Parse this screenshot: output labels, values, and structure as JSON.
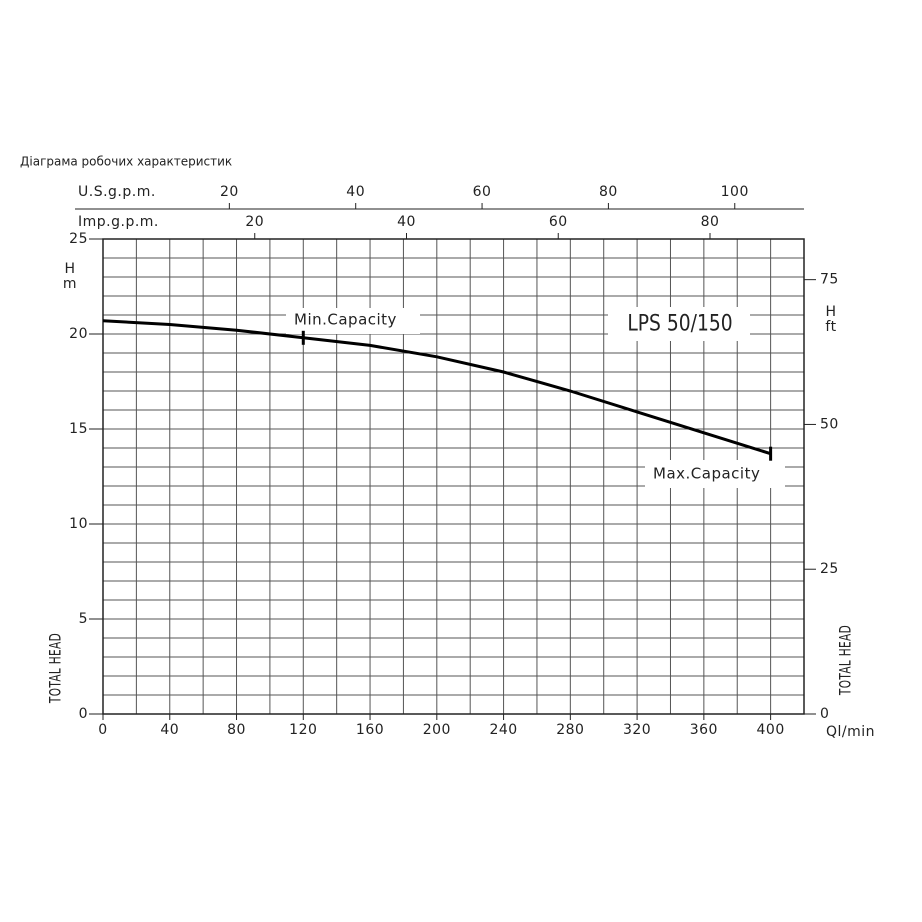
{
  "chart_data": {
    "type": "line",
    "title": "Діаграма робочих характеристик",
    "model": "LPS 50/150",
    "x": [
      0,
      40,
      80,
      120,
      160,
      200,
      240,
      280,
      320,
      360,
      400
    ],
    "series": [
      {
        "name": "LPS 50/150",
        "color": "#000000",
        "values": [
          20.7,
          20.5,
          20.2,
          19.8,
          19.4,
          18.8,
          18.0,
          17.0,
          15.9,
          14.8,
          13.7
        ]
      }
    ],
    "xlim": [
      0,
      420
    ],
    "xticks": [
      0,
      40,
      80,
      120,
      160,
      200,
      240,
      280,
      320,
      360,
      400
    ],
    "xunit": "Ql/min",
    "ylim": [
      0,
      25
    ],
    "yticks": [
      0,
      5,
      10,
      15,
      20,
      25
    ],
    "ylabel": "TOTAL HEAD",
    "ysymbol": "H",
    "yunit": "m",
    "y2lim": [
      0,
      82.02
    ],
    "y2ticks": [
      0,
      25,
      50,
      75
    ],
    "y2label": "TOTAL HEAD",
    "y2symbol": "H",
    "y2unit": "ft",
    "top_axes": [
      {
        "label": "U.S.g.p.m.",
        "lim": [
          0,
          110.96
        ],
        "ticks": [
          20,
          40,
          60,
          80,
          100
        ]
      },
      {
        "label": "Imp.g.p.m.",
        "lim": [
          0,
          92.39
        ],
        "ticks": [
          20,
          40,
          60,
          80
        ]
      }
    ],
    "annotations": [
      {
        "text": "Min.Capacity",
        "x": 120
      },
      {
        "text": "Max.Capacity",
        "x": 400
      }
    ],
    "grid": true,
    "x_grid_step": 20,
    "y_grid_step": 1
  }
}
